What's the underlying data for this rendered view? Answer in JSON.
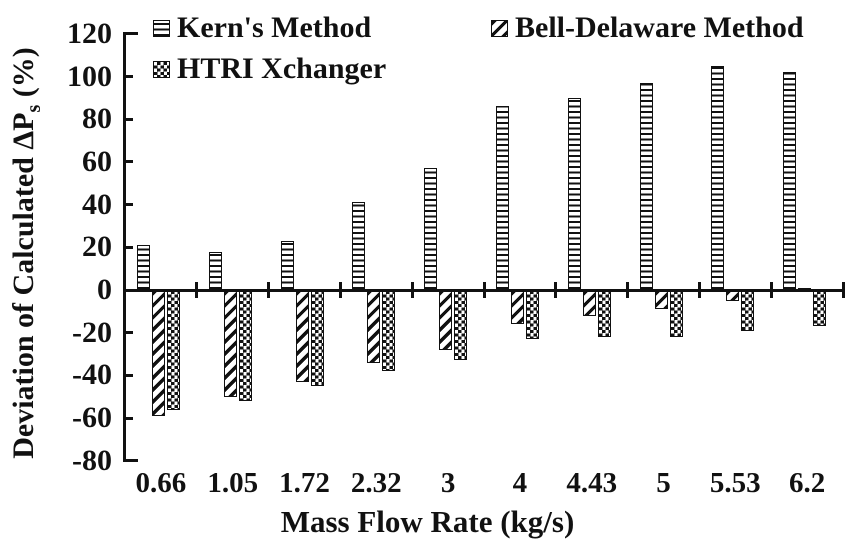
{
  "chart_data": {
    "type": "bar",
    "title": "",
    "xlabel": "Mass Flow Rate (kg/s)",
    "ylabel": "Deviation of Calculated ΔPs (%)",
    "categories": [
      "0.66",
      "1.05",
      "1.72",
      "2.32",
      "3",
      "4",
      "4.43",
      "5",
      "5.53",
      "6.2"
    ],
    "series": [
      {
        "name": "Kern's Method",
        "pattern": "horizontal-stripes",
        "values": [
          21,
          18,
          23,
          41,
          57,
          86,
          90,
          97,
          105,
          102
        ]
      },
      {
        "name": "Bell-Delaware Method",
        "pattern": "diagonal-stripes",
        "values": [
          -59,
          -50,
          -43,
          -34,
          -28,
          -16,
          -12,
          -9,
          -5,
          1
        ]
      },
      {
        "name": "HTRI Xchanger",
        "pattern": "checkerboard",
        "values": [
          -56,
          -52,
          -45,
          -38,
          -33,
          -23,
          -22,
          -22,
          -19,
          -17
        ]
      }
    ],
    "ylim": [
      -80,
      120
    ],
    "yticks": [
      120,
      100,
      80,
      60,
      40,
      20,
      0,
      -20,
      -40,
      -60,
      -80
    ],
    "grid": false,
    "legend_position": "top"
  },
  "ylabel_parts": {
    "main": "Deviation of Calculated ΔP",
    "sub": "s",
    "suffix": " (%)"
  },
  "colors": {
    "ink": "#111111",
    "background": "#ffffff"
  }
}
